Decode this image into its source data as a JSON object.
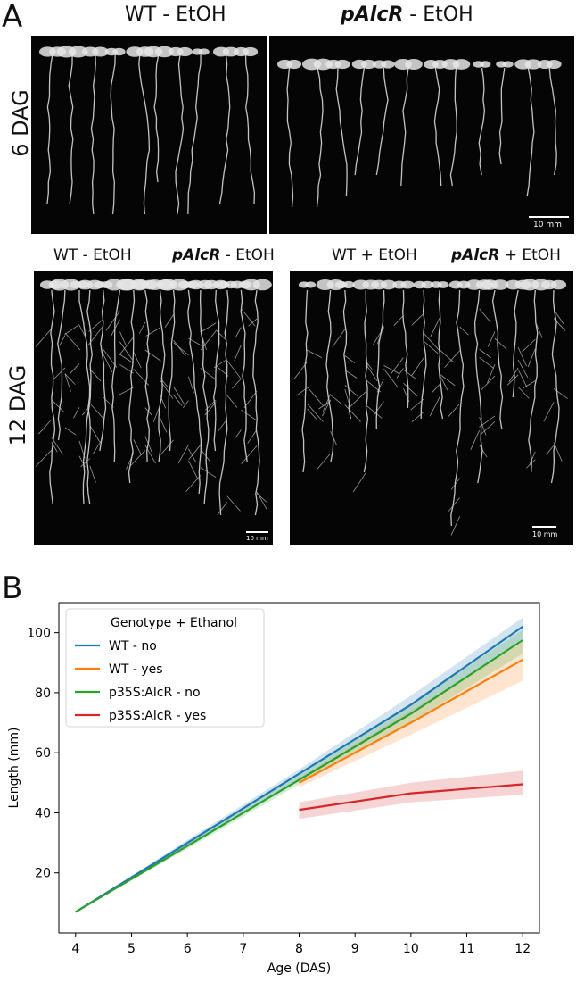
{
  "panel_a": {
    "letter": "A",
    "row1": {
      "label": "6 DAG",
      "left_caption": {
        "a": "WT",
        "b": " - EtOH"
      },
      "right_caption": {
        "a": "pAlcR",
        "b": " - EtOH"
      },
      "scale": "10 mm"
    },
    "row2": {
      "label": "12 DAG",
      "captions": [
        {
          "a": "WT",
          "b": " - EtOH"
        },
        {
          "a": "pAlcR",
          "b": " - EtOH"
        },
        {
          "a": "WT",
          "b": " + EtOH"
        },
        {
          "a": "pAlcR",
          "b": " + EtOH"
        }
      ],
      "scale_left": "10 mm",
      "scale_right": "10 mm"
    }
  },
  "panel_b": {
    "letter": "B"
  },
  "chart_data": {
    "type": "line",
    "xlabel": "Age (DAS)",
    "ylabel": "Length (mm)",
    "xlim": [
      3.7,
      12.3
    ],
    "ylim": [
      0,
      110
    ],
    "xticks": [
      4,
      5,
      6,
      7,
      8,
      9,
      10,
      11,
      12
    ],
    "yticks": [
      20,
      40,
      60,
      80,
      100
    ],
    "legend_title": "Genotype + Ethanol",
    "legend_loc": "upper-left",
    "series": [
      {
        "name": "WT - no",
        "color": "#1f77b4",
        "x": [
          4,
          6,
          8,
          10,
          12
        ],
        "y": [
          7,
          30,
          53,
          76,
          102
        ],
        "lo": [
          7,
          29,
          51.5,
          73,
          98
        ],
        "hi": [
          7,
          31,
          54.5,
          79,
          105
        ]
      },
      {
        "name": "WT - yes",
        "color": "#ff7f0e",
        "x": [
          8,
          10,
          12
        ],
        "y": [
          50,
          70,
          91
        ],
        "lo": [
          48.5,
          66,
          84
        ],
        "hi": [
          51.5,
          74,
          97
        ]
      },
      {
        "name": "p35S:AlcR - no",
        "color": "#2ca02c",
        "x": [
          4,
          6,
          8,
          10,
          12
        ],
        "y": [
          7,
          29,
          51,
          73,
          97.5
        ],
        "lo": [
          7,
          28,
          49.5,
          70,
          93
        ],
        "hi": [
          7,
          30,
          52.5,
          76,
          101
        ]
      },
      {
        "name": "p35S:AlcR - yes",
        "color": "#d62728",
        "x": [
          8,
          10,
          12
        ],
        "y": [
          41,
          46.5,
          49.5
        ],
        "lo": [
          38,
          43.5,
          46
        ],
        "hi": [
          43.5,
          50,
          54
        ]
      }
    ]
  }
}
